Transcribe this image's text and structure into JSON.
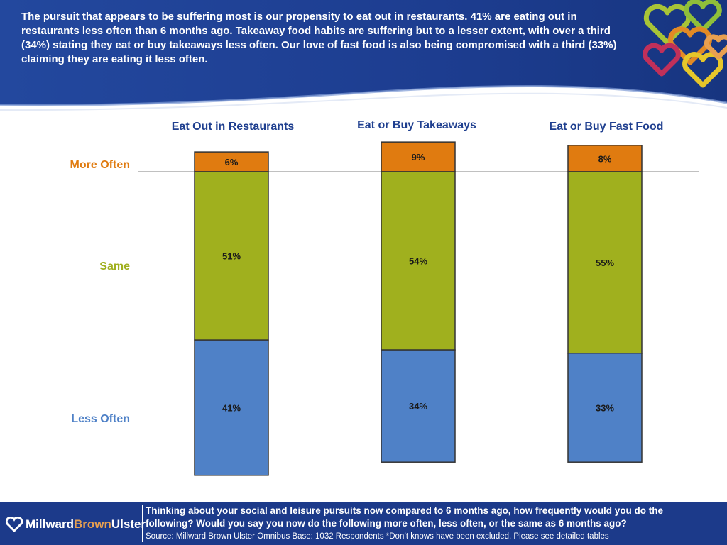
{
  "intro_text": "The pursuit that appears to be suffering most is our propensity to eat out in restaurants.  41% are eating out in restaurants less often than 6 months ago.  Takeaway food habits are suffering but to a lesser extent, with over a third (34%) stating they eat or buy takeaways less often.  Our love of fast food is also being compromised with a third (33%) claiming they are eating it less often.",
  "colors": {
    "header_blue": "#1b3a8c",
    "more_often": "#e07b10",
    "same": "#a0b01e",
    "less_often": "#4f81c7",
    "title_blue": "#1f3f8f"
  },
  "row_labels": {
    "more_often": "More Often",
    "same": "Same",
    "less_often": "Less Often"
  },
  "chart_data": {
    "type": "bar",
    "stacked": true,
    "categories": [
      "Eat Out in Restaurants",
      "Eat or Buy Takeaways",
      "Eat or Buy Fast Food"
    ],
    "series": [
      {
        "name": "Less Often",
        "values": [
          41,
          34,
          33
        ],
        "labels": [
          "41%",
          "34%",
          "33%"
        ],
        "color": "#4f81c7"
      },
      {
        "name": "Same",
        "values": [
          51,
          54,
          55
        ],
        "labels": [
          "51%",
          "54%",
          "55%"
        ],
        "color": "#a0b01e"
      },
      {
        "name": "More Often",
        "values": [
          6,
          9,
          8
        ],
        "labels": [
          "6%",
          "9%",
          "8%"
        ],
        "color": "#e07b10"
      }
    ],
    "unit": "%",
    "grid": false,
    "legend": "left"
  },
  "footer": {
    "logo": {
      "part1": "Millward",
      "part2": "Brown",
      "part3": "Ulster"
    },
    "question": "Thinking about your social and leisure pursuits now compared to 6 months ago, how frequently would you do the following? Would you say you now do the following more often, less often, or the same as 6 months ago?",
    "source": "Source: Millward Brown Ulster Omnibus  Base: 1032 Respondents  *Don’t knows have been excluded.  Please see detailed tables"
  }
}
